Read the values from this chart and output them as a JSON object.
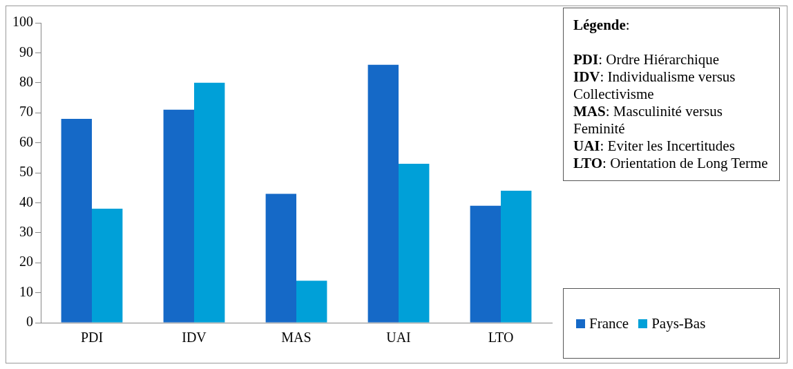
{
  "chart_data": {
    "type": "bar",
    "categories": [
      "PDI",
      "IDV",
      "MAS",
      "UAI",
      "LTO"
    ],
    "series": [
      {
        "name": "France",
        "color": "#1569c7",
        "values": [
          68,
          71,
          43,
          86,
          39
        ]
      },
      {
        "name": "Pays-Bas",
        "color": "#00a0d8",
        "values": [
          38,
          80,
          14,
          53,
          44
        ]
      }
    ],
    "ylim": [
      0,
      100
    ],
    "yticks": [
      0,
      10,
      20,
      30,
      40,
      50,
      60,
      70,
      80,
      90,
      100
    ],
    "grid": false,
    "legend": "bottom right",
    "annotations": [
      "Légende:",
      "PDI: Ordre Hiérarchique",
      "IDV: Individualisme versus Collectivisme",
      "MAS: Masculinité versus Feminité",
      "UAI: Eviter les Incertitudes",
      "LTO: Orientation de Long  Terme"
    ]
  }
}
